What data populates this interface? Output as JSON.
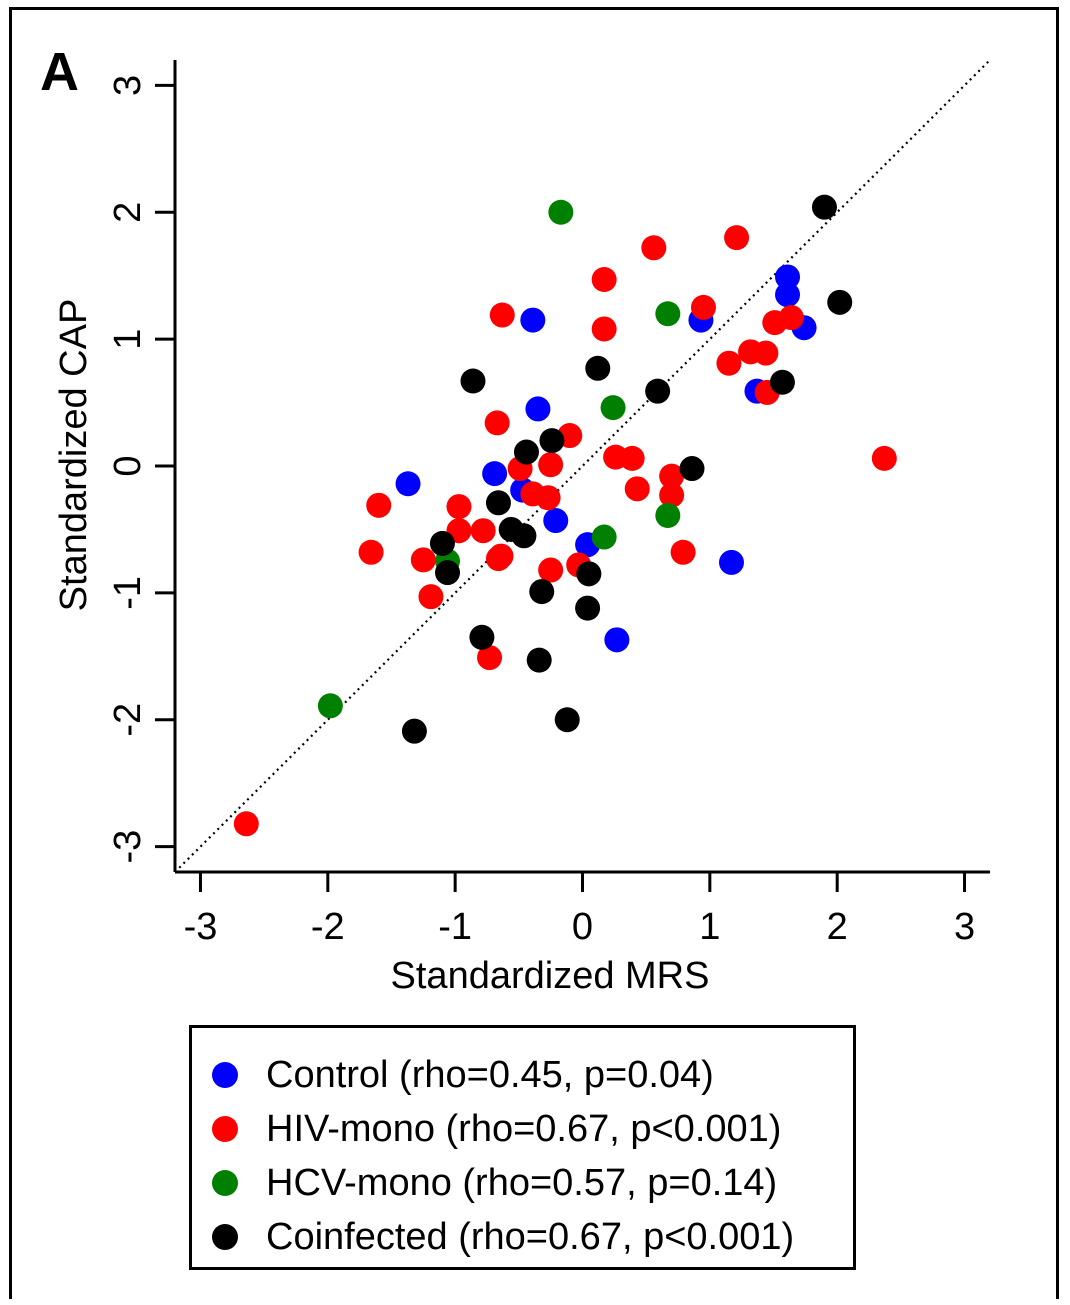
{
  "panel_label": "A",
  "chart_data": {
    "type": "scatter",
    "xlabel": "Standardized MRS",
    "ylabel": "Standardized CAP",
    "xlim": [
      -3.2,
      3.2
    ],
    "ylim": [
      -3.2,
      3.2
    ],
    "xticks": [
      -3,
      -2,
      -1,
      0,
      1,
      2,
      3
    ],
    "yticks": [
      -3,
      -2,
      -1,
      0,
      1,
      2,
      3
    ],
    "reference_line": "identity (y = x), dotted",
    "legend_position": "bottom",
    "series": [
      {
        "name": "Control (rho=0.45, p=0.04)",
        "color": "#0000ff",
        "points": [
          [
            -1.37,
            -0.14
          ],
          [
            -0.39,
            1.15
          ],
          [
            -0.35,
            0.45
          ],
          [
            -0.69,
            -0.06
          ],
          [
            -0.47,
            -0.19
          ],
          [
            -0.21,
            -0.43
          ],
          [
            0.04,
            -0.62
          ],
          [
            0.27,
            -1.37
          ],
          [
            0.93,
            1.15
          ],
          [
            1.17,
            -0.76
          ],
          [
            1.37,
            0.59
          ],
          [
            1.61,
            1.49
          ],
          [
            1.61,
            1.35
          ],
          [
            1.74,
            1.09
          ]
        ]
      },
      {
        "name": "HIV-mono (rho=0.67, p<0.001)",
        "color": "#ff0000",
        "points": [
          [
            -2.64,
            -2.82
          ],
          [
            -1.6,
            -0.31
          ],
          [
            -1.66,
            -0.68
          ],
          [
            -1.25,
            -0.74
          ],
          [
            -1.19,
            -1.03
          ],
          [
            -0.97,
            -0.32
          ],
          [
            -0.97,
            -0.51
          ],
          [
            -0.78,
            -0.51
          ],
          [
            -0.73,
            -1.51
          ],
          [
            -0.64,
            -0.71
          ],
          [
            -0.66,
            -0.73
          ],
          [
            -0.67,
            0.34
          ],
          [
            -0.63,
            1.19
          ],
          [
            -0.49,
            -0.02
          ],
          [
            -0.39,
            -0.22
          ],
          [
            -0.27,
            -0.25
          ],
          [
            -0.25,
            0.01
          ],
          [
            -0.25,
            -0.82
          ],
          [
            -0.1,
            0.24
          ],
          [
            -0.03,
            -0.78
          ],
          [
            0.17,
            1.47
          ],
          [
            0.17,
            1.08
          ],
          [
            0.26,
            0.07
          ],
          [
            0.39,
            0.06
          ],
          [
            0.43,
            -0.18
          ],
          [
            0.56,
            1.72
          ],
          [
            0.7,
            -0.08
          ],
          [
            0.7,
            -0.23
          ],
          [
            0.79,
            -0.68
          ],
          [
            0.95,
            1.25
          ],
          [
            1.15,
            0.81
          ],
          [
            1.21,
            1.8
          ],
          [
            1.32,
            0.9
          ],
          [
            1.44,
            0.89
          ],
          [
            1.45,
            0.58
          ],
          [
            1.51,
            1.13
          ],
          [
            1.64,
            1.17
          ],
          [
            2.37,
            0.06
          ]
        ]
      },
      {
        "name": "HCV-mono (rho=0.57, p=0.14)",
        "color": "#008000",
        "points": [
          [
            -1.98,
            -1.89
          ],
          [
            -1.06,
            -0.75
          ],
          [
            -0.17,
            2.0
          ],
          [
            0.17,
            -0.56
          ],
          [
            0.24,
            0.46
          ],
          [
            0.67,
            1.2
          ],
          [
            0.67,
            -0.39
          ]
        ]
      },
      {
        "name": "Coinfected (rho=0.67, p<0.001)",
        "color": "#000000",
        "points": [
          [
            -1.32,
            -2.09
          ],
          [
            -1.1,
            -0.61
          ],
          [
            -1.06,
            -0.84
          ],
          [
            -0.86,
            0.67
          ],
          [
            -0.79,
            -1.35
          ],
          [
            -0.66,
            -0.29
          ],
          [
            -0.56,
            -0.5
          ],
          [
            -0.46,
            -0.55
          ],
          [
            -0.44,
            0.11
          ],
          [
            -0.32,
            -0.99
          ],
          [
            -0.34,
            -1.53
          ],
          [
            -0.24,
            0.2
          ],
          [
            -0.12,
            -2.0
          ],
          [
            0.04,
            -1.12
          ],
          [
            0.05,
            -0.85
          ],
          [
            0.12,
            0.77
          ],
          [
            0.59,
            0.59
          ],
          [
            0.86,
            -0.02
          ],
          [
            1.57,
            0.66
          ],
          [
            1.9,
            2.04
          ],
          [
            2.02,
            1.29
          ]
        ]
      }
    ]
  }
}
